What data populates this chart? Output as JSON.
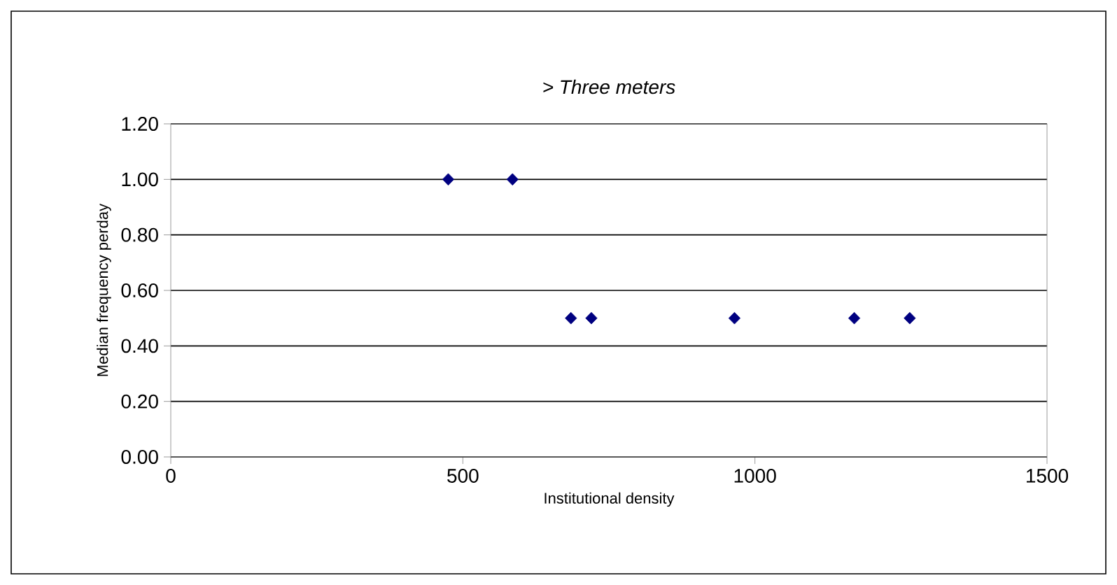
{
  "chart_data": {
    "type": "scatter",
    "title": "> Three meters",
    "xlabel": "Institutional density",
    "ylabel": "Median frequency perday",
    "series": [
      {
        "color": "#000080",
        "x": [
          475,
          585,
          685,
          720,
          965,
          1170,
          1265
        ],
        "values": [
          1.0,
          1.0,
          0.5,
          0.5,
          0.5,
          0.5,
          0.5
        ]
      }
    ],
    "xlim": [
      0,
      1500
    ],
    "xticks": [
      0,
      500,
      1000,
      1500
    ],
    "ylim": [
      0,
      1.2
    ],
    "yticks": [
      {
        "value": 0,
        "label": "0.00"
      },
      {
        "value": 0.2,
        "label": "0.20"
      },
      {
        "value": 0.4,
        "label": "0.40"
      },
      {
        "value": 0.6,
        "label": "0.60"
      },
      {
        "value": 0.8,
        "label": "0.80"
      },
      {
        "value": 1.0,
        "label": "1.00"
      },
      {
        "value": 1.2,
        "label": "1.20"
      }
    ],
    "grid": "y",
    "marker": "diamond"
  }
}
